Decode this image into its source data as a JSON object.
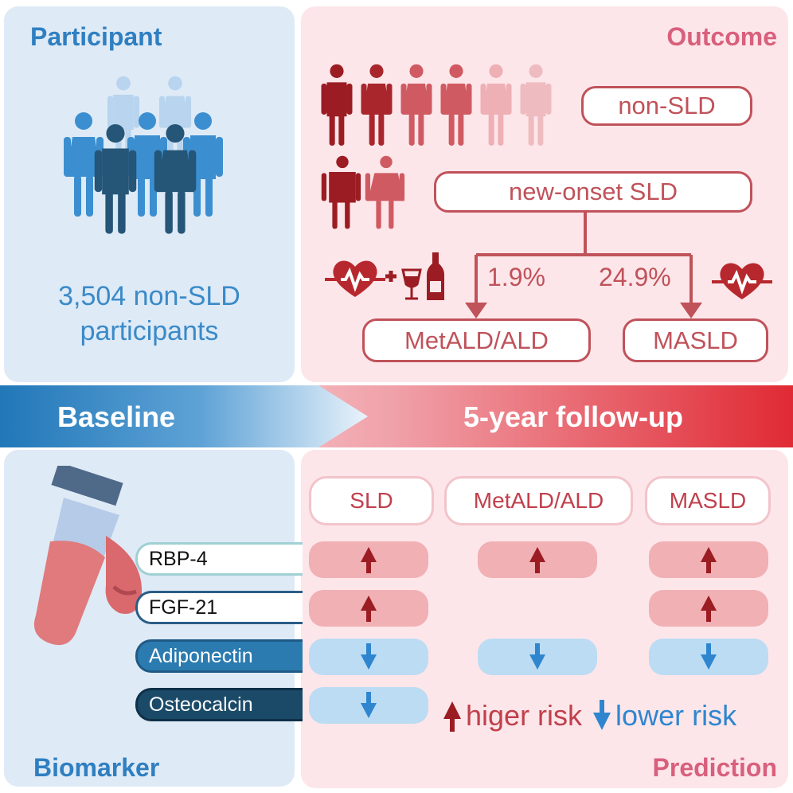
{
  "participant": {
    "title": "Participant",
    "count_line1": "3,504 non-SLD",
    "count_line2": "participants"
  },
  "outcome": {
    "title": "Outcome",
    "non_sld": "non-SLD",
    "new_onset": "new-onset SLD",
    "metald_pct": "1.9%",
    "masld_pct": "24.9%",
    "metald": "MetALD/ALD",
    "masld": "MASLD"
  },
  "banner": {
    "baseline": "Baseline",
    "followup": "5-year follow-up"
  },
  "biomarker": {
    "title": "Biomarker",
    "items": [
      "RBP-4",
      "FGF-21",
      "Adiponectin",
      "Osteocalcin"
    ]
  },
  "prediction": {
    "title": "Prediction",
    "columns": [
      "SLD",
      "MetALD/ALD",
      "MASLD"
    ],
    "grid": [
      [
        "up",
        "up",
        "up"
      ],
      [
        "up",
        "",
        "up"
      ],
      [
        "down",
        "down",
        "down"
      ],
      [
        "down",
        "",
        ""
      ]
    ],
    "legend_up": "higer risk",
    "legend_down": "lower risk"
  },
  "colors": {
    "blue": "#2f7fc1",
    "pink": "#d8607c",
    "red": "#9b1c22",
    "arrow_down": "#2f86cf"
  }
}
